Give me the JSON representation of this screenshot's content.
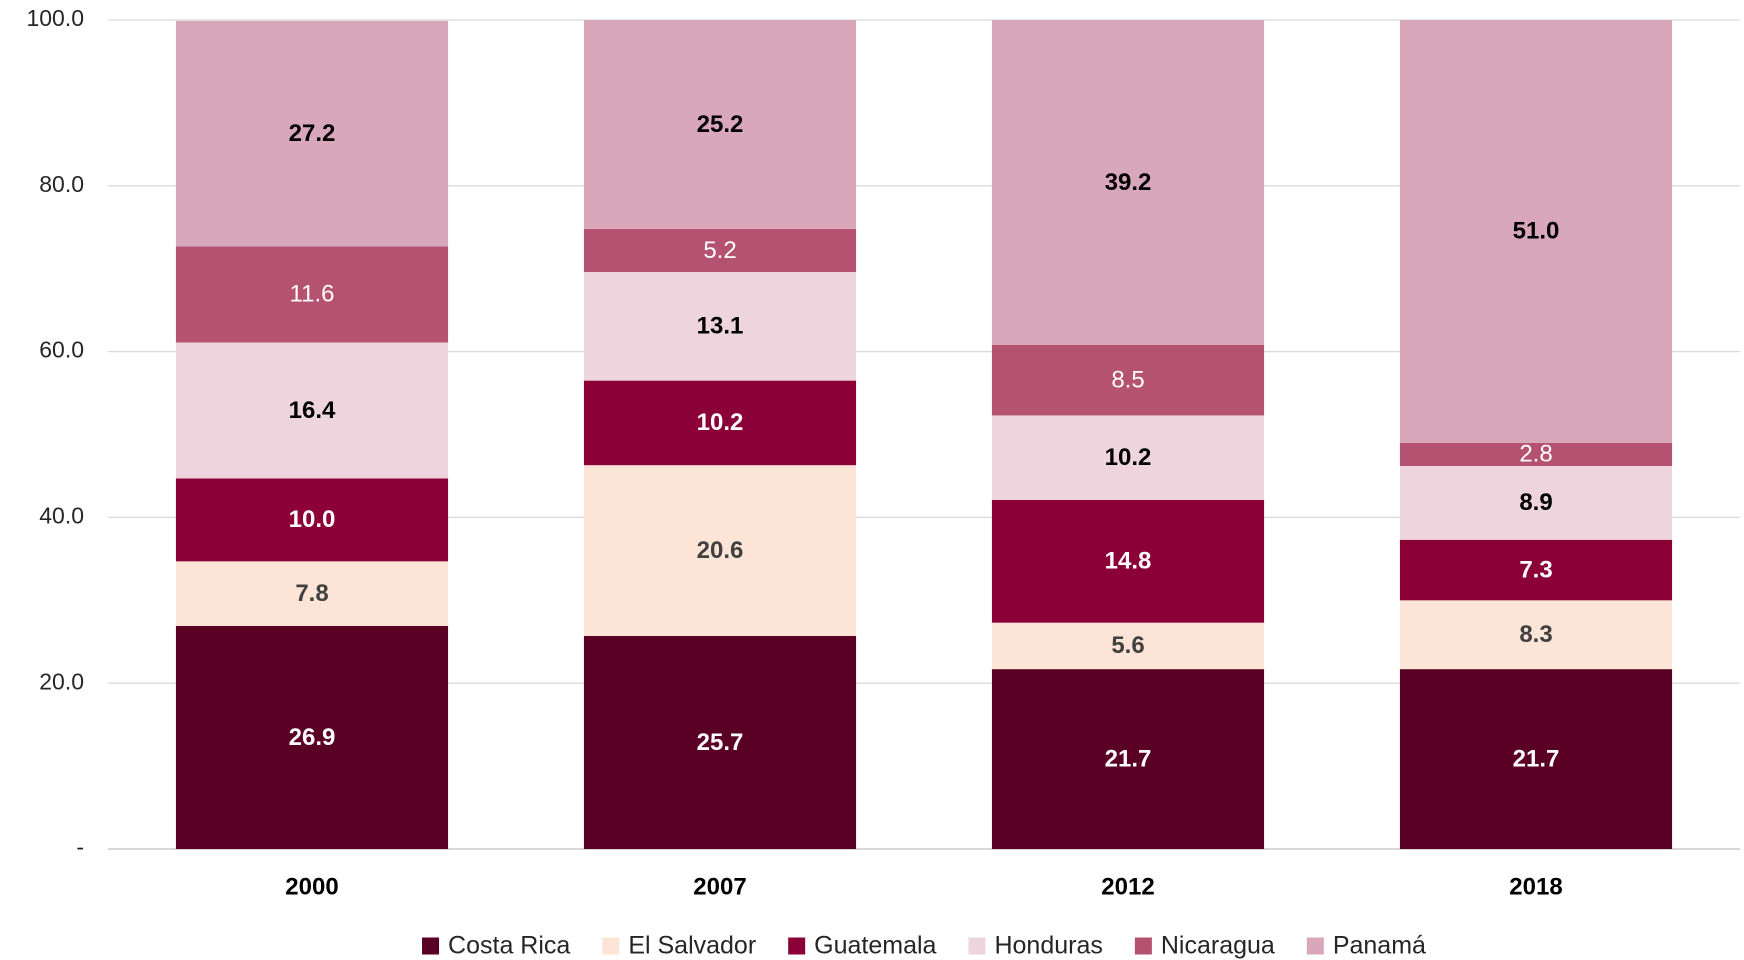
{
  "chart_data": {
    "type": "stacked_bar",
    "categories": [
      "2000",
      "2007",
      "2012",
      "2018"
    ],
    "series": [
      {
        "name": "Costa Rica",
        "color": "#5a0024",
        "label_color": "#ffffff",
        "label_bold": true,
        "values": [
          26.9,
          25.7,
          21.7,
          21.7
        ],
        "value_labels": [
          "26.9",
          "25.7",
          "21.7",
          "21.7"
        ]
      },
      {
        "name": "El Salvador",
        "color": "#fce4d6",
        "label_color": "#404040",
        "label_bold": true,
        "values": [
          7.8,
          20.6,
          5.6,
          8.3
        ],
        "value_labels": [
          "7.8",
          "20.6",
          "5.6",
          "8.3"
        ]
      },
      {
        "name": "Guatemala",
        "color": "#8b0037",
        "label_color": "#ffffff",
        "label_bold": true,
        "values": [
          10.0,
          10.2,
          14.8,
          7.3
        ],
        "value_labels": [
          "10.0",
          "10.2",
          "14.8",
          "7.3"
        ]
      },
      {
        "name": "Honduras",
        "color": "#eed5dd",
        "label_color": "#000000",
        "label_bold": true,
        "values": [
          16.4,
          13.1,
          10.2,
          8.9
        ],
        "value_labels": [
          "16.4",
          "13.1",
          "10.2",
          "8.9"
        ]
      },
      {
        "name": "Nicaragua",
        "color": "#b65271",
        "label_color": "#ffffff",
        "label_bold": false,
        "values": [
          11.6,
          5.2,
          8.5,
          2.8
        ],
        "value_labels": [
          "11.6",
          "5.2",
          "8.5",
          "2.8"
        ]
      },
      {
        "name": "Panamá",
        "color": "#d9a7ba",
        "label_color": "#000000",
        "label_bold": true,
        "values": [
          27.2,
          25.2,
          39.2,
          51.0
        ],
        "value_labels": [
          "27.2",
          "25.2",
          "39.2",
          "51.0"
        ]
      }
    ],
    "ylim": [
      0,
      100
    ],
    "yticks": [
      {
        "value": 0,
        "label": "-"
      },
      {
        "value": 20,
        "label": "20.0"
      },
      {
        "value": 40,
        "label": "40.0"
      },
      {
        "value": 60,
        "label": "60.0"
      },
      {
        "value": 80,
        "label": "80.0"
      },
      {
        "value": 100,
        "label": "100.0"
      }
    ],
    "grid": true,
    "legend": "bottom"
  }
}
